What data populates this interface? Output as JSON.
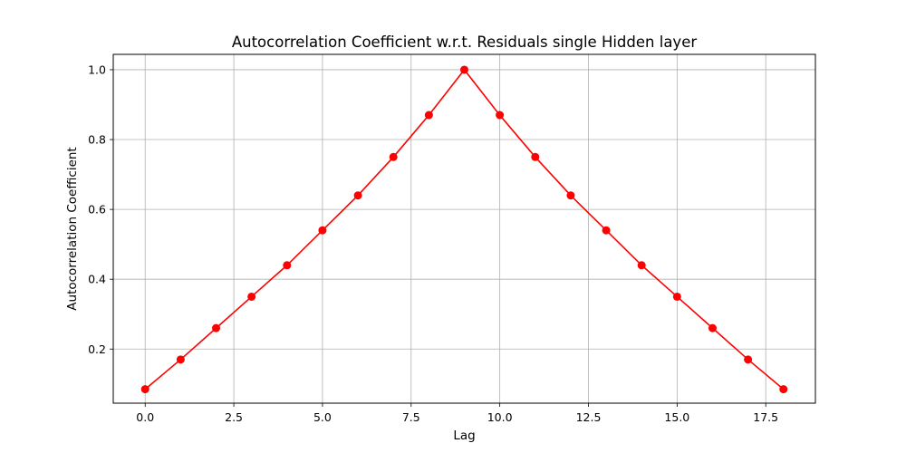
{
  "chart_data": {
    "type": "line",
    "title": "Autocorrelation Coefficient w.r.t. Residuals single Hidden layer",
    "xlabel": "Lag",
    "ylabel": "Autocorrelation Coefficient",
    "xlim": [
      -0.9,
      18.9
    ],
    "ylim": [
      0.045,
      1.044
    ],
    "xticks": [
      0,
      2.5,
      5,
      7.5,
      10,
      12.5,
      15,
      17.5
    ],
    "xtick_labels": [
      "0.0",
      "2.5",
      "5.0",
      "7.5",
      "10.0",
      "12.5",
      "15.0",
      "17.5"
    ],
    "yticks": [
      0.2,
      0.4,
      0.6,
      0.8,
      1.0
    ],
    "ytick_labels": [
      "0.2",
      "0.4",
      "0.6",
      "0.8",
      "1.0"
    ],
    "grid": true,
    "series": [
      {
        "color": "#ff0000",
        "marker": "circle",
        "x": [
          0,
          1,
          2,
          3,
          4,
          5,
          6,
          7,
          8,
          9,
          10,
          11,
          12,
          13,
          14,
          15,
          16,
          17,
          18
        ],
        "y": [
          0.085,
          0.17,
          0.26,
          0.35,
          0.44,
          0.54,
          0.64,
          0.75,
          0.87,
          1.0,
          0.87,
          0.75,
          0.64,
          0.54,
          0.44,
          0.35,
          0.26,
          0.17,
          0.085
        ]
      }
    ]
  }
}
